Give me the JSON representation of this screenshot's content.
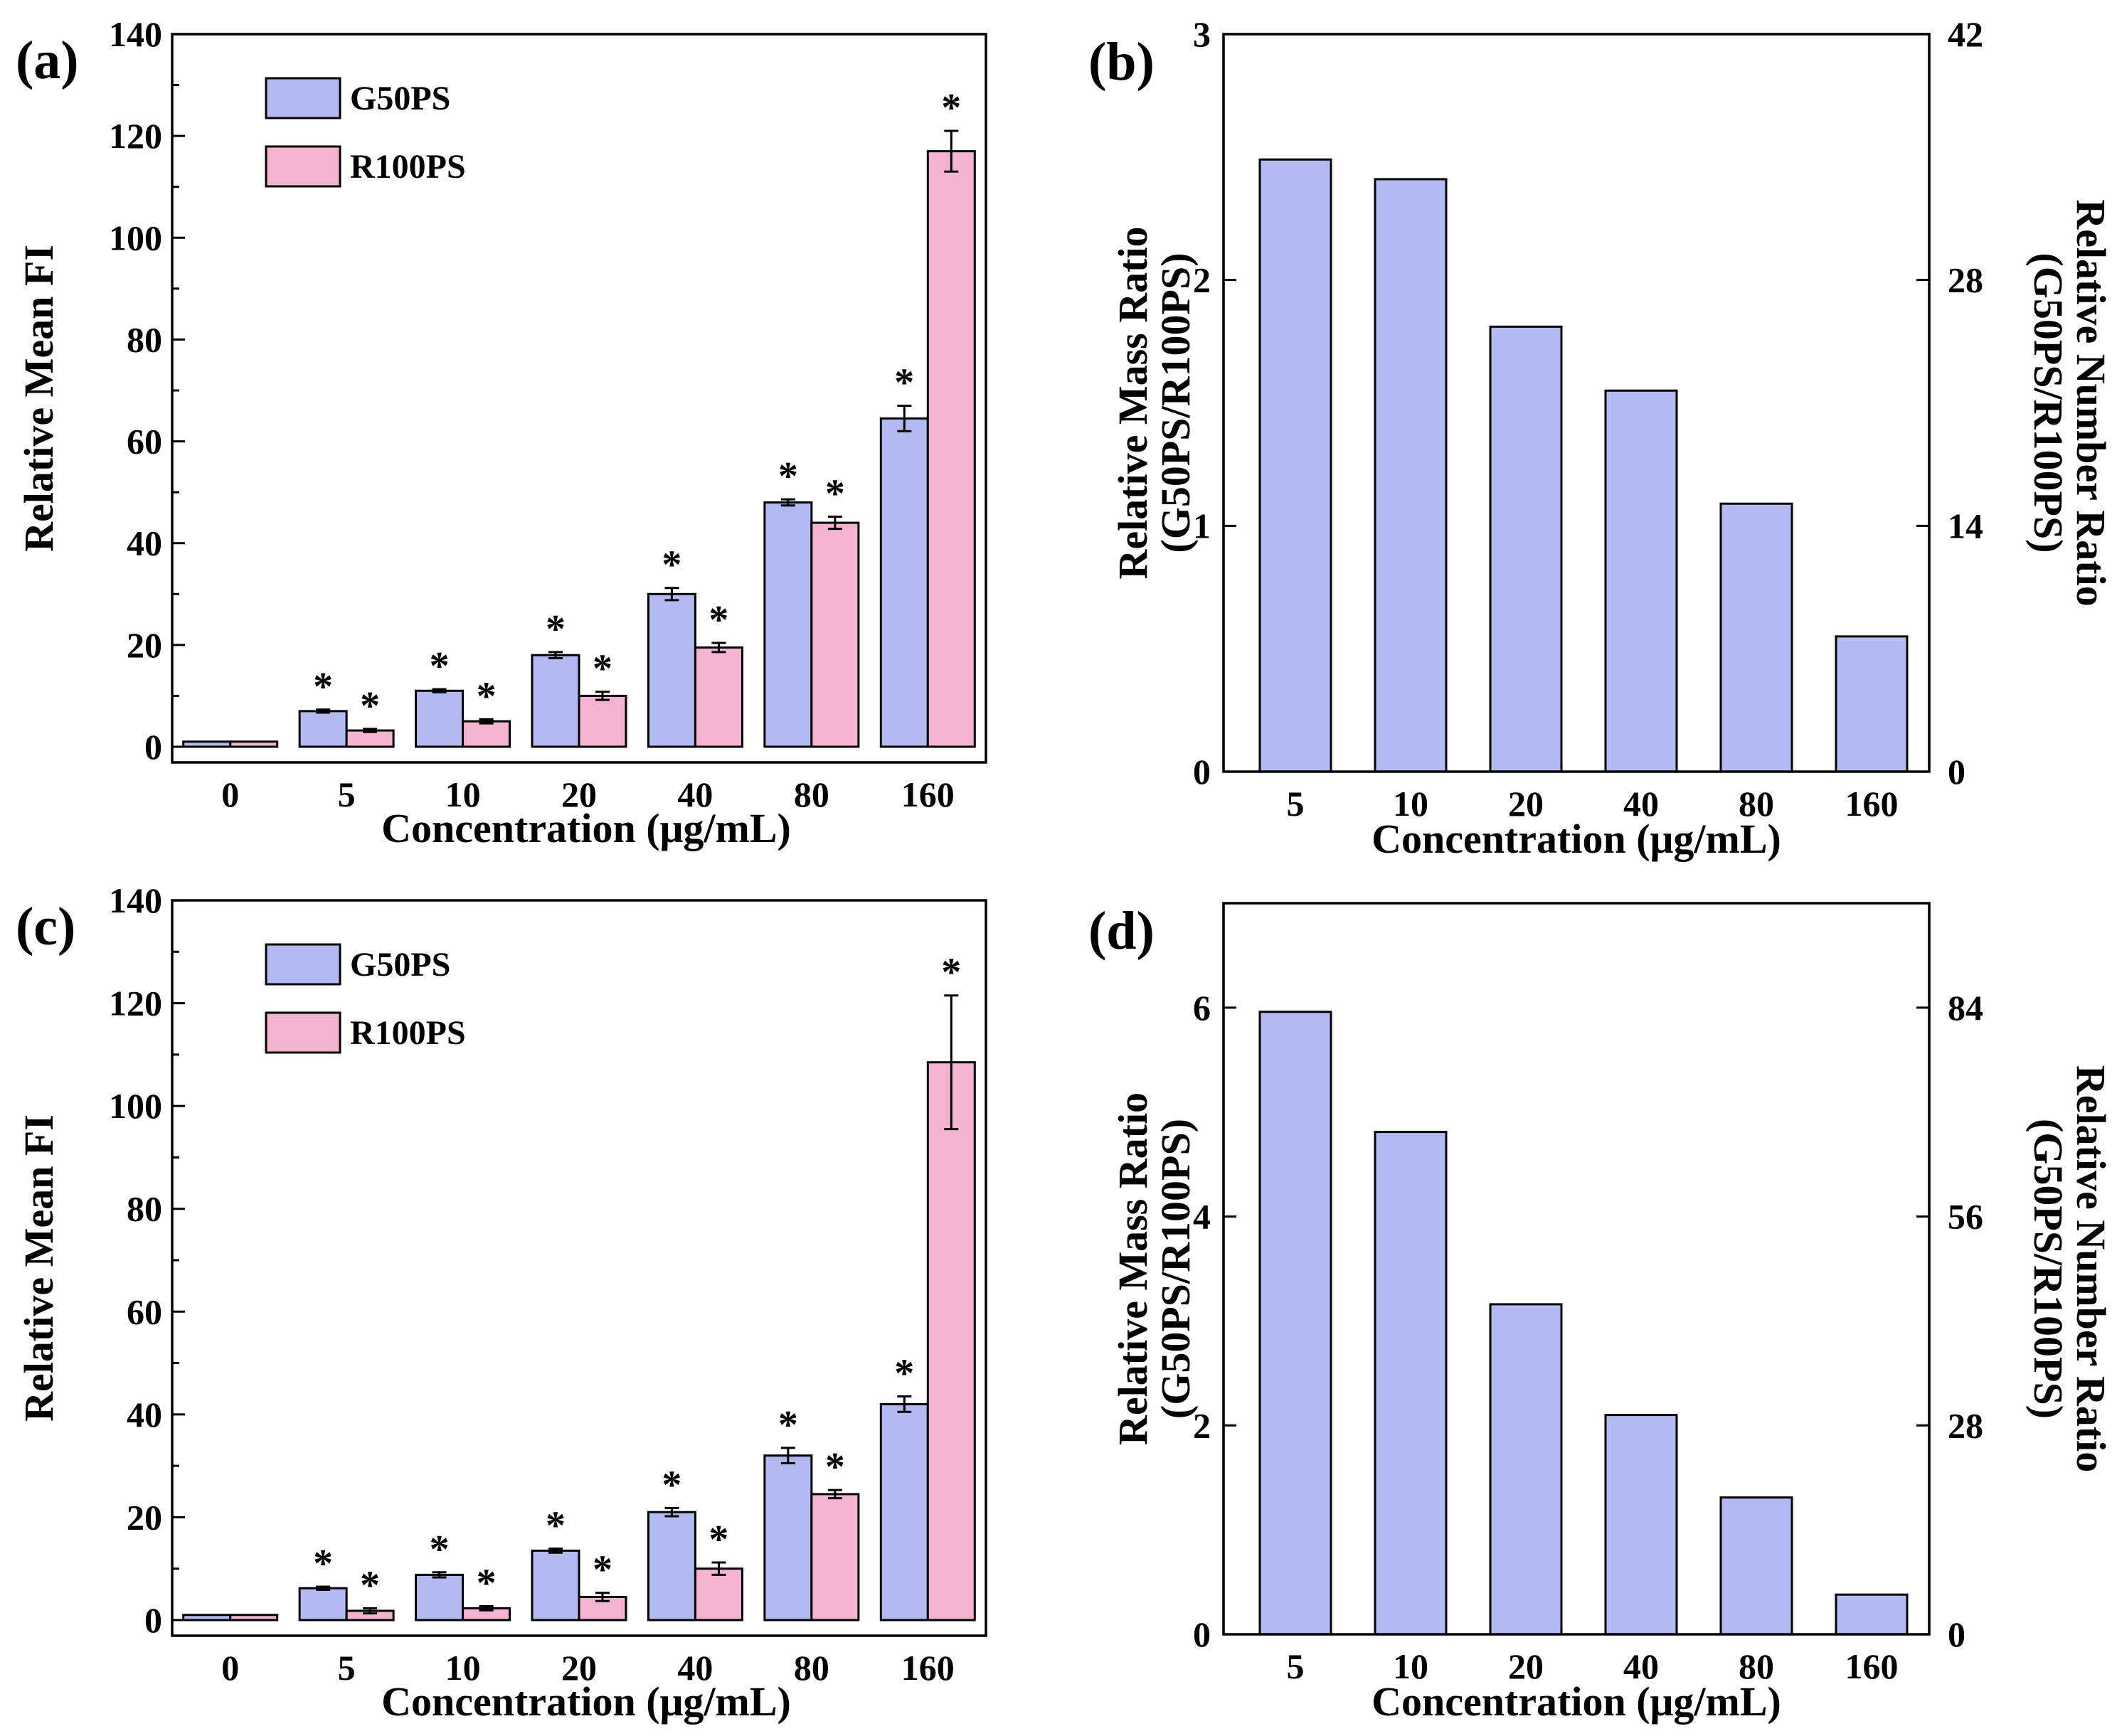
{
  "colors": {
    "series_1": "#b4b9f2",
    "series_2": "#f5b3d2",
    "stroke": "#000000"
  },
  "chart_data": [
    {
      "panel": "(a)",
      "type": "bar",
      "categories": [
        "0",
        "5",
        "10",
        "20",
        "40",
        "80",
        "160"
      ],
      "xlabel": "Concentration (μg/mL)",
      "ylabel": "Relative Mean FI",
      "ylim": [
        0,
        140
      ],
      "yticks": [
        0,
        20,
        40,
        60,
        80,
        100,
        120,
        140
      ],
      "legend": "top-left",
      "series": [
        {
          "name": "G50PS",
          "values": [
            1,
            7,
            11,
            18,
            30,
            48,
            64.5
          ],
          "errors": [
            0,
            0.3,
            0.3,
            0.6,
            1.2,
            0.6,
            2.5
          ],
          "sig": [
            "",
            "*",
            "*",
            "*",
            "*",
            "*",
            "*"
          ]
        },
        {
          "name": "R100PS",
          "values": [
            1,
            3.2,
            5,
            10,
            19.5,
            44,
            117
          ],
          "errors": [
            0,
            0.3,
            0.4,
            0.8,
            0.9,
            1.2,
            4
          ],
          "sig": [
            "",
            "*",
            "*",
            "*",
            "*",
            "*",
            "*"
          ]
        }
      ]
    },
    {
      "panel": "(b)",
      "type": "bar",
      "categories": [
        "5",
        "10",
        "20",
        "40",
        "80",
        "160"
      ],
      "xlabel": "Concentration (μg/mL)",
      "ylabel_lines": [
        "Relative Mass Ratio",
        "(G50PS/R100PS)"
      ],
      "ylabel2_lines": [
        "Relative Number Ratio",
        "(G50PS/R100PS)"
      ],
      "ylim": [
        0,
        3
      ],
      "yticks": [
        0,
        1,
        2,
        3
      ],
      "y2lim": [
        0,
        42
      ],
      "y2ticks": [
        0,
        14,
        28,
        42
      ],
      "values": [
        2.49,
        2.41,
        1.81,
        1.55,
        1.09,
        0.55
      ]
    },
    {
      "panel": "(c)",
      "type": "bar",
      "categories": [
        "0",
        "5",
        "10",
        "20",
        "40",
        "80",
        "160"
      ],
      "xlabel": "Concentration (μg/mL)",
      "ylabel": "Relative Mean FI",
      "ylim": [
        0,
        140
      ],
      "yticks": [
        0,
        20,
        40,
        60,
        80,
        100,
        120,
        140
      ],
      "legend": "top-left",
      "series": [
        {
          "name": "G50PS",
          "values": [
            1,
            6.2,
            8.8,
            13.5,
            21,
            32,
            42
          ],
          "errors": [
            0,
            0.3,
            0.5,
            0.4,
            0.8,
            1.5,
            1.5
          ],
          "sig": [
            "",
            "*",
            "*",
            "*",
            "*",
            "*",
            "*"
          ]
        },
        {
          "name": "R100PS",
          "values": [
            1,
            1.8,
            2.3,
            4.5,
            10,
            24.5,
            108.5
          ],
          "errors": [
            0,
            0.5,
            0.4,
            0.8,
            1.2,
            0.8,
            13
          ],
          "sig": [
            "",
            "*",
            "*",
            "*",
            "*",
            "*",
            "*"
          ]
        }
      ]
    },
    {
      "panel": "(d)",
      "type": "bar",
      "categories": [
        "5",
        "10",
        "20",
        "40",
        "80",
        "160"
      ],
      "xlabel": "Concentration (μg/mL)",
      "ylabel_lines": [
        "Relative Mass Ratio",
        "(G50PS/R100PS)"
      ],
      "ylabel2_lines": [
        "Relative Number Ratio",
        "(G50PS/R100PS)"
      ],
      "ylim": [
        0,
        7
      ],
      "yticks": [
        0,
        2,
        4,
        6
      ],
      "y2lim": [
        0,
        98
      ],
      "y2ticks": [
        0,
        28,
        56,
        84
      ],
      "values": [
        5.96,
        4.81,
        3.16,
        2.1,
        1.31,
        0.38
      ]
    }
  ]
}
